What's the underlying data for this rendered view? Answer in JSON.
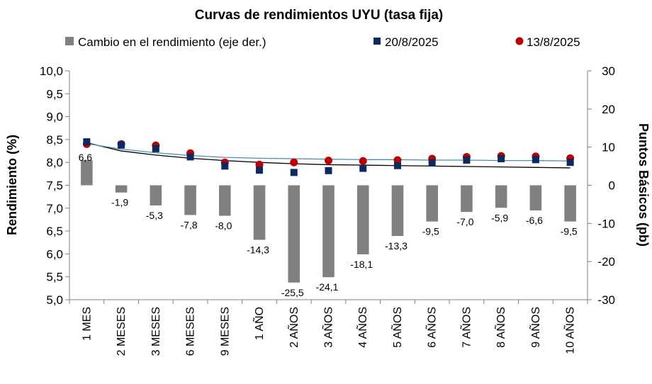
{
  "chart_data": {
    "type": "bar",
    "title": "Curvas de rendimientos UYU (tasa fija)",
    "ylabel_left": "Rendimiento (%)",
    "ylabel_right": "Puntos Básicos (pb)",
    "categories": [
      "1 MES",
      "2 MESES",
      "3 MESES",
      "6 MESES",
      "9 MESES",
      "1 AÑO",
      "2 AÑOS",
      "3 AÑOS",
      "4 AÑOS",
      "5 AÑOS",
      "6 AÑOS",
      "7 AÑOS",
      "8 AÑOS",
      "9 AÑOS",
      "10 AÑOS"
    ],
    "left_axis": {
      "min": 5.0,
      "max": 10.0,
      "step": 0.5,
      "tick_labels": [
        "5,0",
        "5,5",
        "6,0",
        "6,5",
        "7,0",
        "7,5",
        "8,0",
        "8,5",
        "9,0",
        "9,5",
        "10,0"
      ]
    },
    "right_axis": {
      "min": -30,
      "max": 30,
      "step": 10,
      "tick_labels": [
        "-30",
        "-20",
        "-10",
        "0",
        "10",
        "20",
        "30"
      ]
    },
    "grid": false,
    "legend_position": "top",
    "series": [
      {
        "name": "Cambio en el rendimiento (eje der.)",
        "kind": "bar",
        "axis": "right",
        "color": "#808080",
        "values": [
          6.6,
          -1.9,
          -5.3,
          -7.8,
          -8.0,
          -14.3,
          -25.5,
          -24.1,
          -18.1,
          -13.3,
          -9.5,
          -7.0,
          -5.9,
          -6.6,
          -9.5
        ],
        "labels": [
          "6,6",
          "-1,9",
          "-5,3",
          "-7,8",
          "-8,0",
          "-14,3",
          "-25,5",
          "-24,1",
          "-18,1",
          "-13,3",
          "-9,5",
          "-7,0",
          "-5,9",
          "-6,6",
          "-9,5"
        ]
      },
      {
        "name": "20/8/2025",
        "kind": "scatter",
        "axis": "left",
        "marker": "square",
        "color": "#0d2a5e",
        "values": [
          8.45,
          8.38,
          8.3,
          8.12,
          7.92,
          7.83,
          7.78,
          7.82,
          7.87,
          7.93,
          7.99,
          8.05,
          8.08,
          8.06,
          8.0
        ]
      },
      {
        "name": "13/8/2025",
        "kind": "scatter",
        "axis": "left",
        "marker": "circle",
        "color": "#c00000",
        "values": [
          8.4,
          8.4,
          8.37,
          8.2,
          8.0,
          7.95,
          8.0,
          8.04,
          8.03,
          8.05,
          8.08,
          8.12,
          8.14,
          8.13,
          8.09
        ]
      }
    ],
    "trendlines": [
      {
        "of": "20/8/2025",
        "color": "#000000",
        "values": [
          8.43,
          8.25,
          8.16,
          8.09,
          8.04,
          8.0,
          7.97,
          7.95,
          7.94,
          7.93,
          7.92,
          7.91,
          7.9,
          7.89,
          7.88
        ]
      },
      {
        "of": "13/8/2025",
        "color": "#4a90b8",
        "values": [
          8.41,
          8.29,
          8.21,
          8.15,
          8.11,
          8.09,
          8.08,
          8.07,
          8.06,
          8.06,
          8.05,
          8.05,
          8.04,
          8.04,
          8.03
        ]
      }
    ]
  }
}
